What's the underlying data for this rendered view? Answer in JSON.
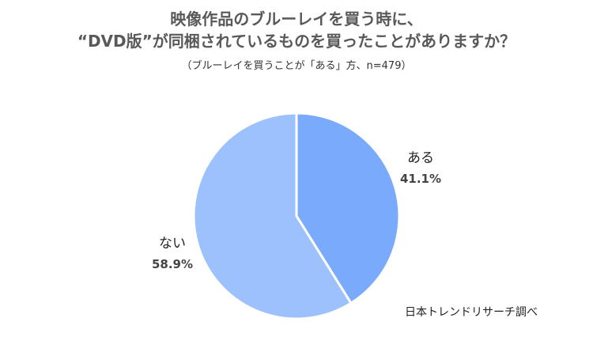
{
  "title_line1": "映像作品のブルーレイを買う時に、",
  "title_line2": "“DVD版”が同梱されているものを買ったことがありますか？",
  "subtitle": "（ブルーレイを買うことが「ある」方、n=479）",
  "source": "日本トレンドリサーチ調べ",
  "chart_data": {
    "type": "pie",
    "title": "映像作品のブルーレイを買う時に、“DVD版”が同梱されているものを買ったことがありますか？",
    "subtitle": "（ブルーレイを買うことが「ある」方、n=479）",
    "start_angle": "12 o'clock",
    "direction": "clockwise",
    "slices": [
      {
        "label": "ある",
        "value": 41.1,
        "display": "41.1%",
        "color": "#7aaafc"
      },
      {
        "label": "ない",
        "value": 58.9,
        "display": "58.9%",
        "color": "#9dc1fc"
      }
    ]
  }
}
